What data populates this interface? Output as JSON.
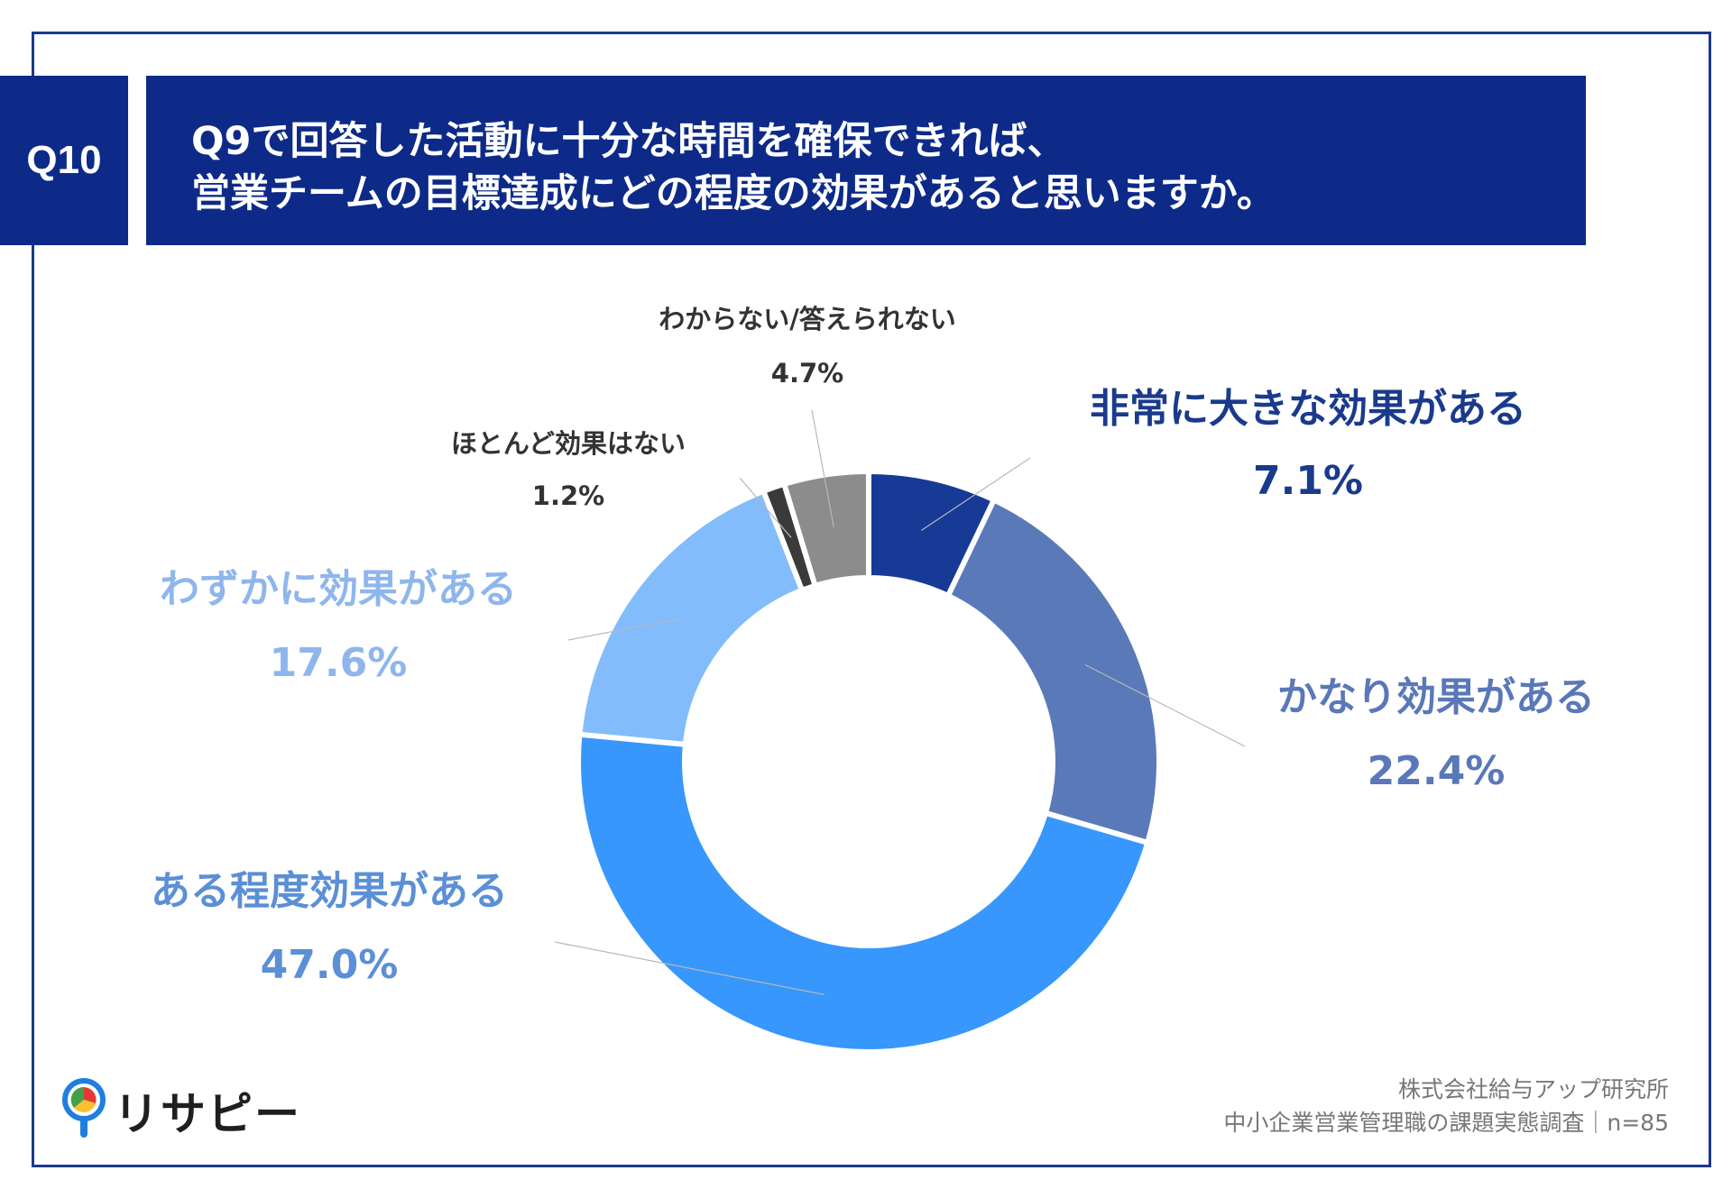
{
  "header": {
    "badge": "Q10",
    "question_line1": "Q9で回答した活動に十分な時間を確保できれば、",
    "question_line2": "営業チームの目標達成にどの程度の効果があると思いますか。"
  },
  "chart_data": {
    "type": "pie",
    "title": "",
    "categories": [
      "非常に大きな効果がある",
      "かなり効果がある",
      "ある程度効果がある",
      "わずかに効果がある",
      "ほとんど効果はない",
      "わからない/答えられない"
    ],
    "values": [
      7.1,
      22.4,
      47.0,
      17.6,
      1.2,
      4.7
    ],
    "value_labels": [
      "7.1%",
      "22.4%",
      "47.0%",
      "17.6%",
      "1.2%",
      "4.7%"
    ],
    "colors": [
      "#173a96",
      "#5a79b8",
      "#3797fc",
      "#82bcfc",
      "#3a3a3a",
      "#8c8c8c"
    ],
    "label_colors": [
      "#1a3a8c",
      "#5a78b8",
      "#5b8fd6",
      "#8fb6ec",
      "#333333",
      "#333333"
    ],
    "grid": false,
    "legend": "none"
  },
  "footer": {
    "source_line1": "株式会社給与アップ研究所",
    "source_line2": "中小企業営業管理職の課題実態調査｜n=85",
    "logo_text": "リサピー"
  }
}
